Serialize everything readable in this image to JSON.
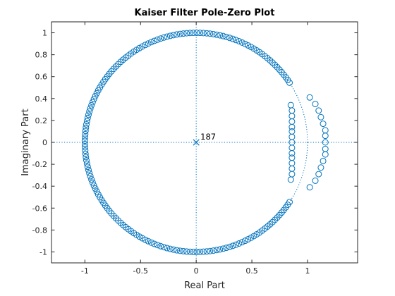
{
  "chart_data": {
    "type": "scatter",
    "title": "Kaiser Filter Pole-Zero Plot",
    "xlabel": "Real Part",
    "ylabel": "Imaginary Part",
    "xlim": [
      -1.3,
      1.45
    ],
    "ylim": [
      -1.1,
      1.1
    ],
    "xticks": [
      -1,
      -0.5,
      0,
      0.5,
      1
    ],
    "xtick_labels": [
      "-1",
      "-0.5",
      "0",
      "0.5",
      "1"
    ],
    "yticks": [
      -1,
      -0.8,
      -0.6,
      -0.4,
      -0.2,
      0,
      0.2,
      0.4,
      0.6,
      0.8,
      1
    ],
    "ytick_labels": [
      "-1",
      "-0.8",
      "-0.6",
      "-0.4",
      "-0.2",
      "0",
      "0.2",
      "0.4",
      "0.6",
      "0.8",
      "1"
    ],
    "grid": false,
    "colors": {
      "zero": "#0072bd",
      "pole": "#0072bd",
      "reference": "#0072bd",
      "axes": "#262626"
    },
    "unit_circle": {
      "show": true,
      "style": "dotted"
    },
    "zeros_on_circle": {
      "count": 172,
      "angle_start_deg": 33.0,
      "angle_end_deg": 327.0
    },
    "zeros_inner_column": [
      [
        0.85,
        0.34
      ],
      [
        0.86,
        0.29
      ],
      [
        0.86,
        0.24
      ],
      [
        0.86,
        0.19
      ],
      [
        0.86,
        0.14
      ],
      [
        0.86,
        0.1
      ],
      [
        0.86,
        0.05
      ],
      [
        0.86,
        0.0
      ],
      [
        0.86,
        -0.05
      ],
      [
        0.86,
        -0.1
      ],
      [
        0.86,
        -0.14
      ],
      [
        0.86,
        -0.19
      ],
      [
        0.86,
        -0.24
      ],
      [
        0.86,
        -0.29
      ],
      [
        0.85,
        -0.34
      ]
    ],
    "zeros_outer_arc": [
      [
        1.02,
        0.41
      ],
      [
        1.07,
        0.35
      ],
      [
        1.1,
        0.29
      ],
      [
        1.12,
        0.23
      ],
      [
        1.14,
        0.17
      ],
      [
        1.16,
        0.11
      ],
      [
        1.16,
        0.06
      ],
      [
        1.16,
        0.0
      ],
      [
        1.16,
        -0.06
      ],
      [
        1.16,
        -0.11
      ],
      [
        1.14,
        -0.17
      ],
      [
        1.12,
        -0.23
      ],
      [
        1.1,
        -0.29
      ],
      [
        1.07,
        -0.35
      ],
      [
        1.02,
        -0.41
      ]
    ],
    "poles": [
      {
        "x": 0,
        "y": 0,
        "multiplicity_label": "187"
      }
    ]
  }
}
